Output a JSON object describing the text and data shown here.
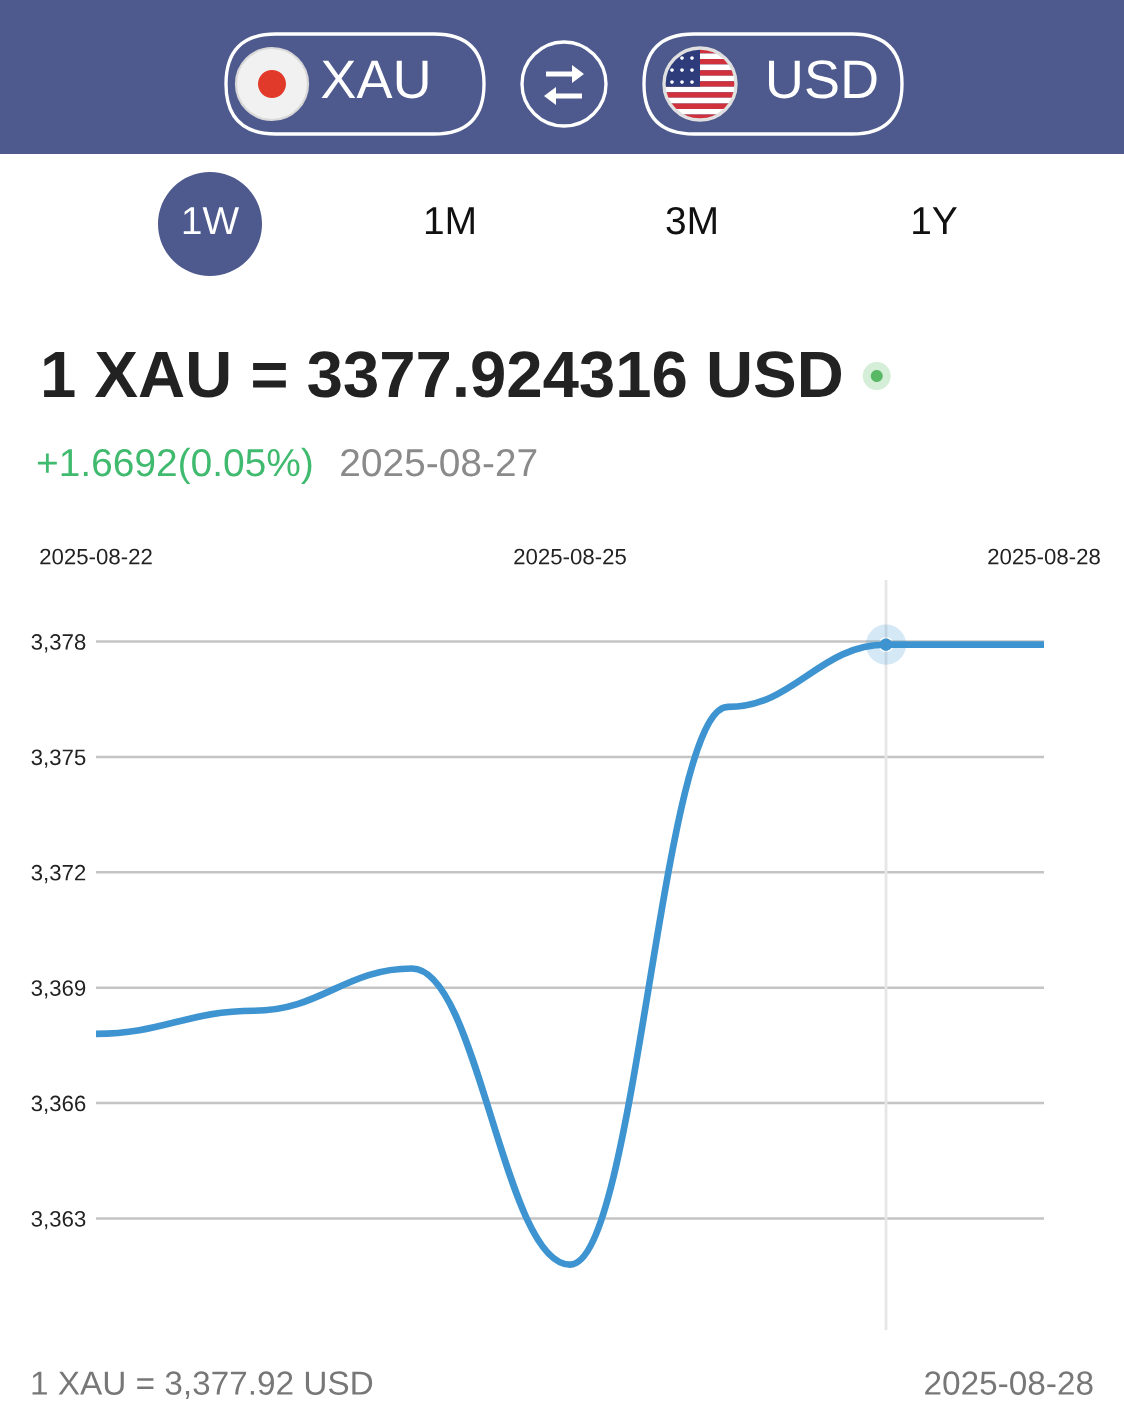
{
  "chart_data": {
    "type": "line",
    "title": "1 XAU = 3377.924316 USD",
    "subtitle": "+1.6692(0.05%)",
    "annotations": [
      "XAU",
      "USD",
      "1W",
      "1M",
      "3M",
      "1Y",
      "2025-08-27",
      "1 XAU = 3,377.92 USD",
      "2025-08-28"
    ],
    "x": [
      "2025-08-22",
      "2025-08-23",
      "2025-08-24",
      "2025-08-25",
      "2025-08-26",
      "2025-08-27",
      "2025-08-28"
    ],
    "series": [
      {
        "color": "#3d94d0",
        "values": [
          3367.8,
          3368.4,
          3369.5,
          3361.8,
          3376.3,
          3377.92,
          3377.92
        ]
      },
      {
        "type": "scatter",
        "x": [
          "2025-08-27"
        ],
        "values": [
          3377.92
        ],
        "color": "#3d94d0",
        "marker": "circle"
      }
    ],
    "xlim": [
      "2025-08-22",
      "2025-08-28"
    ],
    "ylim": [
      3360.1,
      3379.6
    ],
    "xticks": [
      "2025-08-22",
      "2025-08-25",
      "2025-08-28"
    ],
    "yticks": [
      {
        "value": 3363,
        "label": "3,363"
      },
      {
        "value": 3366,
        "label": "3,366"
      },
      {
        "value": 3369,
        "label": "3,369"
      },
      {
        "value": 3372,
        "label": "3,372"
      },
      {
        "value": 3375,
        "label": "3,375"
      },
      {
        "value": 3378,
        "label": "3,378"
      }
    ],
    "grid": "y",
    "ref_lines": [
      {
        "axis": "x",
        "value": "2025-08-27",
        "color": "#e6e6e6"
      }
    ]
  }
}
